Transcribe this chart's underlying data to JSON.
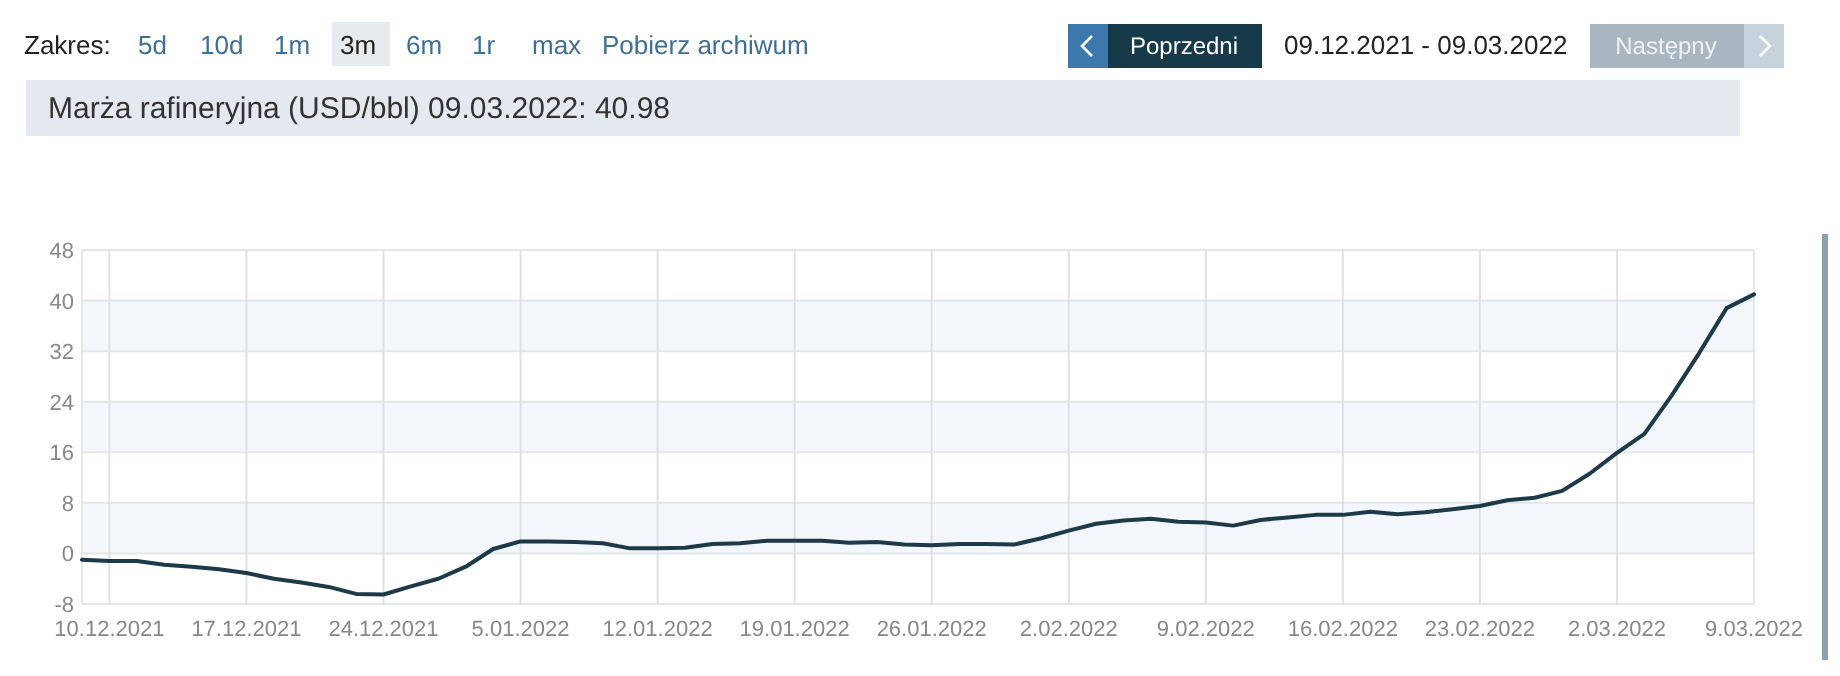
{
  "chart_data": {
    "type": "line",
    "title": "Marża rafineryjna (USD/bbl) 09.03.2022: 40.98",
    "annotations": [
      "Zakres:",
      "5d",
      "10d",
      "1m",
      "3m",
      "6m",
      "1r",
      "max",
      "Pobierz archiwum",
      "Poprzedni",
      "09.12.2021 - 09.03.2022",
      "Następny"
    ],
    "categories": [
      null,
      "10.12.2021",
      null,
      null,
      null,
      null,
      "17.12.2021",
      null,
      null,
      null,
      null,
      "24.12.2021",
      null,
      null,
      null,
      null,
      "5.01.2022",
      null,
      null,
      null,
      null,
      "12.01.2022",
      null,
      null,
      null,
      null,
      "19.01.2022",
      null,
      null,
      null,
      null,
      "26.01.2022",
      null,
      null,
      null,
      null,
      "2.02.2022",
      null,
      null,
      null,
      null,
      "9.02.2022",
      null,
      null,
      null,
      null,
      "16.02.2022",
      null,
      null,
      null,
      null,
      "23.02.2022",
      null,
      null,
      null,
      null,
      "2.03.2022",
      null,
      null,
      null,
      null,
      "9.03.2022"
    ],
    "series": [
      {
        "color": "#1d3a48",
        "values": [
          -1.0,
          -1.2,
          -1.2,
          -1.8,
          -2.1,
          -2.5,
          -3.1,
          -4.0,
          -4.6,
          -5.3,
          -6.4,
          -6.5,
          -5.2,
          -4.0,
          -2.1,
          0.7,
          1.9,
          1.9,
          1.8,
          1.6,
          0.8,
          0.8,
          0.9,
          1.5,
          1.6,
          2.0,
          2.0,
          2.0,
          1.7,
          1.8,
          1.4,
          1.3,
          1.5,
          1.5,
          1.4,
          2.4,
          3.6,
          4.7,
          5.2,
          5.5,
          5.0,
          4.9,
          4.4,
          5.3,
          5.7,
          6.1,
          6.1,
          6.6,
          6.2,
          6.5,
          7.0,
          7.5,
          8.4,
          8.8,
          9.9,
          12.6,
          15.9,
          18.9,
          25.0,
          31.7,
          38.8,
          40.98
        ]
      }
    ],
    "ylim": [
      -8,
      48
    ],
    "yticks": [
      -8,
      0,
      8,
      16,
      24,
      32,
      40,
      48
    ],
    "bands": [
      {
        "axis": "y",
        "from": 0,
        "to": 8,
        "color": "#f3f7fb"
      },
      {
        "axis": "y",
        "from": 16,
        "to": 24,
        "color": "#f3f7fb"
      },
      {
        "axis": "y",
        "from": 32,
        "to": 40,
        "color": "#f3f7fb"
      }
    ],
    "grid": true,
    "marker": "none",
    "line_style": "solid"
  }
}
